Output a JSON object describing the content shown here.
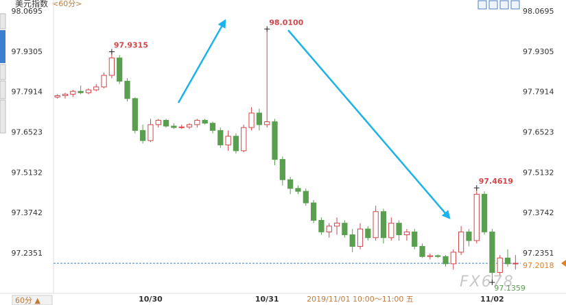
{
  "chart_data": {
    "type": "candlestick",
    "title": "美元指数",
    "subtitle": "<60分>",
    "period_button": "60分 ▲",
    "watermark": "FX678",
    "up_color": "#d0454a",
    "down_color": "#5a9e50",
    "ylim": [
      97.098,
      98.11
    ],
    "yticks": [
      {
        "value": 98.0695,
        "label": "98.0695"
      },
      {
        "value": 97.9305,
        "label": "97.9305"
      },
      {
        "value": 97.7914,
        "label": "97.7914"
      },
      {
        "value": 97.6523,
        "label": "97.6523"
      },
      {
        "value": 97.5132,
        "label": "97.5132"
      },
      {
        "value": 97.3742,
        "label": "97.3742"
      },
      {
        "value": 97.2351,
        "label": "97.2351"
      }
    ],
    "grid": false,
    "last_price": {
      "value": 97.2018,
      "label": "97.2018"
    },
    "annotations": [
      {
        "value": 97.9315,
        "label": "97.9315"
      },
      {
        "value": 98.01,
        "label": "98.0100"
      },
      {
        "value": 97.4619,
        "label": "97.4619"
      },
      {
        "value": 97.1359,
        "label": "97.1359"
      }
    ],
    "categories": [
      null,
      null,
      null,
      null,
      null,
      null,
      null,
      null,
      null,
      null,
      null,
      null,
      "10/30",
      null,
      null,
      null,
      null,
      null,
      null,
      null,
      null,
      null,
      null,
      null,
      null,
      null,
      null,
      "10/31",
      null,
      null,
      null,
      null,
      null,
      null,
      null,
      null,
      null,
      null,
      null,
      "2019/11/01 10:00～11:00 五",
      null,
      null,
      null,
      null,
      null,
      null,
      null,
      null,
      null,
      null,
      null,
      null,
      null,
      null,
      null,
      null,
      "11/02",
      null,
      null,
      null
    ],
    "ohlc": [
      [
        97.775,
        97.785,
        97.77,
        97.78
      ],
      [
        97.78,
        97.79,
        97.77,
        97.785
      ],
      [
        97.785,
        97.8,
        97.775,
        97.795
      ],
      [
        97.795,
        97.815,
        97.785,
        97.79
      ],
      [
        97.79,
        97.805,
        97.785,
        97.8
      ],
      [
        97.8,
        97.82,
        97.795,
        97.81
      ],
      [
        97.81,
        97.86,
        97.805,
        97.85
      ],
      [
        97.85,
        97.9315,
        97.84,
        97.91
      ],
      [
        97.91,
        97.92,
        97.82,
        97.83
      ],
      [
        97.83,
        97.84,
        97.76,
        97.77
      ],
      [
        97.77,
        97.775,
        97.65,
        97.66
      ],
      [
        97.66,
        97.68,
        97.615,
        97.625
      ],
      [
        97.625,
        97.7,
        97.62,
        97.68
      ],
      [
        97.68,
        97.7,
        97.67,
        97.695
      ],
      [
        97.695,
        97.7,
        97.67,
        97.675
      ],
      [
        97.675,
        97.685,
        97.665,
        97.67
      ],
      [
        97.67,
        97.68,
        97.665,
        97.672
      ],
      [
        97.672,
        97.685,
        97.665,
        97.68
      ],
      [
        97.68,
        97.7,
        97.67,
        97.695
      ],
      [
        97.695,
        97.7,
        97.68,
        97.685
      ],
      [
        97.685,
        97.69,
        97.65,
        97.66
      ],
      [
        97.66,
        97.67,
        97.6,
        97.61
      ],
      [
        97.61,
        97.66,
        97.59,
        97.64
      ],
      [
        97.64,
        97.65,
        97.58,
        97.59
      ],
      [
        97.59,
        97.68,
        97.585,
        97.67
      ],
      [
        97.67,
        97.74,
        97.66,
        97.72
      ],
      [
        97.72,
        97.735,
        97.66,
        97.68
      ],
      [
        97.68,
        98.01,
        97.67,
        97.69
      ],
      [
        97.69,
        97.7,
        97.54,
        97.56
      ],
      [
        97.56,
        97.57,
        97.47,
        97.49
      ],
      [
        97.49,
        97.5,
        97.44,
        97.46
      ],
      [
        97.46,
        97.47,
        97.44,
        97.45
      ],
      [
        97.45,
        97.46,
        97.4,
        97.41
      ],
      [
        97.41,
        97.42,
        97.34,
        97.35
      ],
      [
        97.35,
        97.36,
        97.3,
        97.31
      ],
      [
        97.31,
        97.34,
        97.29,
        97.33
      ],
      [
        97.33,
        97.36,
        97.3,
        97.34
      ],
      [
        97.34,
        97.35,
        97.29,
        97.3
      ],
      [
        97.3,
        97.32,
        97.24,
        97.26
      ],
      [
        97.26,
        97.34,
        97.25,
        97.32
      ],
      [
        97.32,
        97.33,
        97.28,
        97.29
      ],
      [
        97.29,
        97.4,
        97.28,
        97.38
      ],
      [
        97.38,
        97.39,
        97.27,
        97.29
      ],
      [
        97.29,
        97.36,
        97.28,
        97.34
      ],
      [
        97.34,
        97.35,
        97.28,
        97.3
      ],
      [
        97.3,
        97.32,
        97.28,
        97.31
      ],
      [
        97.31,
        97.32,
        97.25,
        97.26
      ],
      [
        97.26,
        97.27,
        97.22,
        97.225
      ],
      [
        97.225,
        97.235,
        97.215,
        97.228
      ],
      [
        97.228,
        97.232,
        97.22,
        97.225
      ],
      [
        97.225,
        97.23,
        97.19,
        97.2
      ],
      [
        97.2,
        97.25,
        97.18,
        97.24
      ],
      [
        97.24,
        97.33,
        97.23,
        97.31
      ],
      [
        97.31,
        97.32,
        97.26,
        97.28
      ],
      [
        97.28,
        97.4619,
        97.27,
        97.44
      ],
      [
        97.44,
        97.45,
        97.3,
        97.31
      ],
      [
        97.31,
        97.32,
        97.1359,
        97.17
      ],
      [
        97.17,
        97.23,
        97.16,
        97.22
      ],
      [
        97.22,
        97.25,
        97.19,
        97.2
      ],
      [
        97.2,
        97.23,
        97.18,
        97.2018
      ]
    ]
  }
}
